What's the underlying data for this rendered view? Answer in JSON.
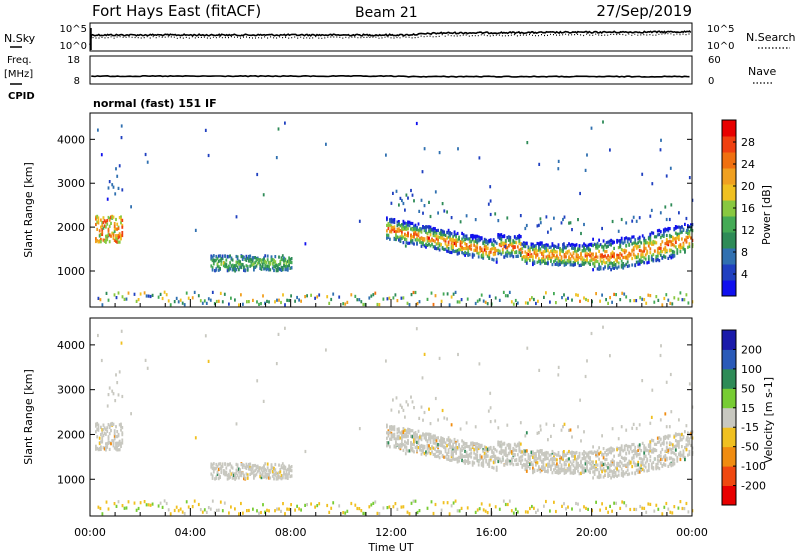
{
  "header": {
    "station": "Fort Hays East (fitACF)",
    "beam": "Beam 21",
    "date": "27/Sep/2019",
    "mode": "normal (fast) 151 IF"
  },
  "chart_data": [
    {
      "type": "line",
      "panel": "noise",
      "left_label": "N.Sky",
      "right_label": "N.Search",
      "left_ticks": [
        "10^5",
        "10^0"
      ],
      "right_ticks": [
        "10^5",
        "10^0"
      ],
      "scale": "log"
    },
    {
      "type": "line",
      "panel": "frequency",
      "left_label_line1": "Freq.",
      "left_label_line2": "[MHz]",
      "left_label_line3": "CPID",
      "right_label": "Nave",
      "left_ticks": [
        18,
        8
      ],
      "right_ticks": [
        60,
        0
      ],
      "ylim": [
        8,
        18
      ],
      "freq_value": 10.8
    },
    {
      "type": "heatmap",
      "panel": "power",
      "ylabel": "Slant Range [km]",
      "xlabel": "",
      "yticks": [
        1000,
        2000,
        3000,
        4000
      ],
      "ylim": [
        180,
        4600
      ],
      "xlim": [
        0,
        24
      ],
      "colorbar_label": "Power [dB]",
      "colorbar_ticks": [
        4,
        8,
        12,
        16,
        20,
        24,
        28
      ],
      "colorbar_range": [
        0,
        32
      ],
      "colors": [
        "#1010ee",
        "#2040c0",
        "#3070b0",
        "#2e8b57",
        "#44aa55",
        "#88c840",
        "#f0c020",
        "#f0a020",
        "#f07010",
        "#f04010",
        "#e80000"
      ]
    },
    {
      "type": "heatmap",
      "panel": "velocity",
      "ylabel": "Slant Range [km]",
      "xlabel": "Time UT",
      "yticks": [
        1000,
        2000,
        3000,
        4000
      ],
      "ylim": [
        180,
        4600
      ],
      "xlim": [
        0,
        24
      ],
      "xticks": [
        "00:00",
        "04:00",
        "08:00",
        "12:00",
        "16:00",
        "20:00",
        "00:00"
      ],
      "colorbar_label": "Velocity [m s-1]",
      "colorbar_ticks": [
        "200",
        "100",
        "50",
        "15",
        "-15",
        "-50",
        "-100",
        "-200"
      ],
      "colors": [
        "#1a1aaa",
        "#2a5ab8",
        "#2e8b57",
        "#77cc33",
        "#c8c8c0",
        "#f0c020",
        "#f08c10",
        "#f04810",
        "#e80000"
      ]
    }
  ]
}
